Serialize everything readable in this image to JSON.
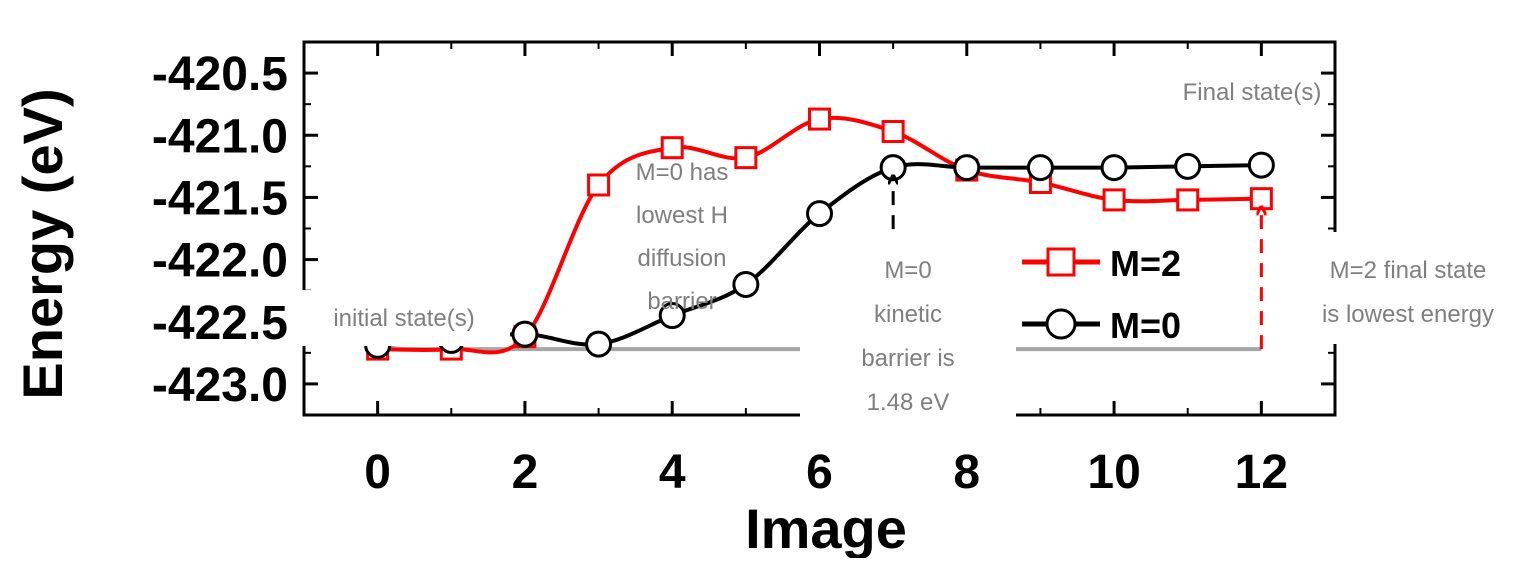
{
  "chart_data": {
    "type": "line",
    "x": [
      0,
      1,
      2,
      3,
      4,
      5,
      6,
      7,
      8,
      9,
      10,
      11,
      12
    ],
    "xlim": [
      -1,
      13
    ],
    "ylim": [
      -423.25,
      -420.25
    ],
    "xticks": [
      0,
      2,
      4,
      6,
      8,
      10,
      12
    ],
    "xtick_labels": [
      "0",
      "2",
      "4",
      "6",
      "8",
      "10",
      "12"
    ],
    "yticks": [
      -420.5,
      -421.0,
      -421.5,
      -422.0,
      -422.5,
      -423.0
    ],
    "ytick_labels": [
      "-420.5",
      "-421.0",
      "-421.5",
      "-422.0",
      "-422.5",
      "-423.0"
    ],
    "xlabel": "Image",
    "ylabel": "Energy (eV)",
    "grid": false,
    "legend_position": "right",
    "series": [
      {
        "name": "M=2",
        "color": "#ff0000",
        "marker": "square-open",
        "values": [
          -422.72,
          -422.72,
          -422.62,
          -421.4,
          -421.1,
          -421.18,
          -420.87,
          -420.97,
          -421.28,
          -421.38,
          -421.52,
          -421.52,
          -421.51
        ]
      },
      {
        "name": "M=0",
        "color": "#000000",
        "marker": "circle-open",
        "values": [
          -422.69,
          -422.65,
          -422.6,
          -422.68,
          -422.45,
          -422.2,
          -421.63,
          -421.26,
          -421.26,
          -421.26,
          -421.26,
          -421.25,
          -421.24
        ]
      }
    ],
    "annotations": {
      "final_states": "Final state(s)",
      "initial_states": "initial state(s)",
      "m0_barrier": [
        "M=0 has",
        "lowest H",
        "diffusion",
        "barrier"
      ],
      "m0_kinetic": [
        "M=0",
        "kinetic",
        "barrier is",
        "1.48 eV"
      ],
      "m2_final": [
        "M=2 final state",
        "is lowest energy"
      ]
    },
    "reference_line": {
      "y": -422.72,
      "color": "#a6a6a6"
    },
    "arrows": [
      {
        "x": 7,
        "to_y": -421.26,
        "color": "#000000"
      },
      {
        "x": 12,
        "to_y": -421.51,
        "color": "#ff0000"
      }
    ]
  }
}
